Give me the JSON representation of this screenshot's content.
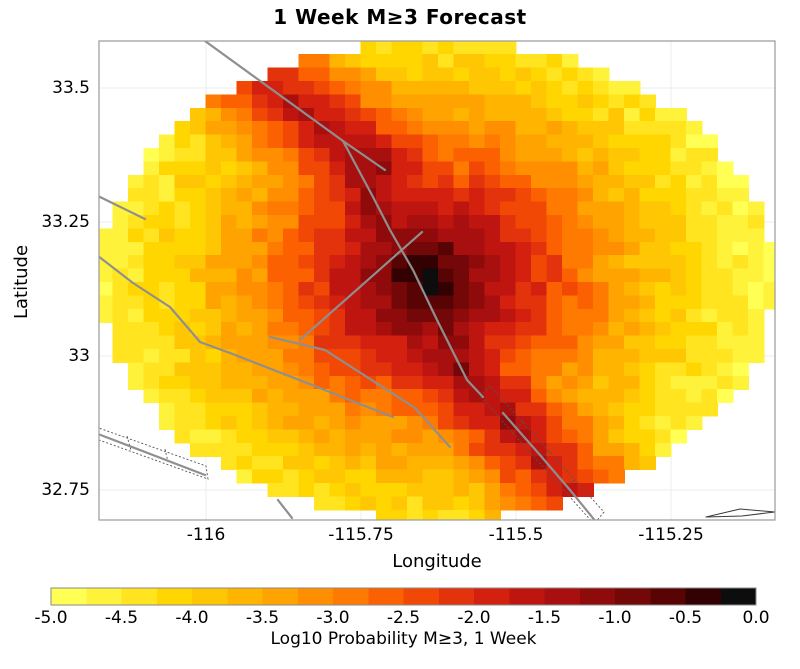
{
  "chart_data": {
    "type": "heatmap",
    "title": "1 Week M≥3 Forecast",
    "xlabel": "Longitude",
    "ylabel": "Latitude",
    "xlim": [
      -116.1726,
      -115.0823
    ],
    "ylim": [
      32.694,
      33.5877
    ],
    "x_ticks": [
      -116,
      -115.75,
      -115.5,
      -115.25
    ],
    "x_tick_labels": [
      "-116",
      "-115.75",
      "-115.5",
      "-115.25"
    ],
    "y_ticks": [
      33.5,
      33.25,
      33.0,
      32.75
    ],
    "y_tick_labels": [
      "33.5",
      "33.25",
      "33",
      "32.75"
    ],
    "grid": true,
    "legend_position": "bottom-colorbar",
    "cell_size_deg": 0.025,
    "grid_origin": {
      "lon": -116.175,
      "lat_top": 33.5875,
      "nx": 44,
      "ny": 36
    },
    "mask_ellipse": {
      "center_lon": -115.6275,
      "center_lat": 33.1408,
      "rx": 0.545,
      "ry": 0.447
    },
    "field_model": {
      "description": "log10 weekly M>=3 probability: radial peak at mainshock + ridge along main fault + noisy yellow background, quantized to 0.25 colour blocks",
      "peak": {
        "lon": -115.642,
        "lat": 33.142,
        "value": -0.05,
        "radial_poly": [
          -0.05,
          -13.5,
          9.0
        ]
      },
      "ridge": {
        "base": -0.8,
        "along_decay": 1.9,
        "cross_decay": 17.0,
        "polylines": [
          [
            [
              -116.0016,
              33.5877
            ],
            [
              -115.779,
              33.4011
            ],
            [
              -115.7306,
              33.2966
            ],
            [
              -115.7032,
              33.2351
            ],
            [
              -115.6661,
              33.1604
            ],
            [
              -115.6274,
              33.0672
            ],
            [
              -115.579,
              32.9552
            ],
            [
              -115.5532,
              32.9235
            ],
            [
              -115.521,
              32.8937
            ],
            [
              -115.4613,
              32.8153
            ],
            [
              -115.4129,
              32.75
            ],
            [
              -115.3694,
              32.6884
            ]
          ],
          [
            [
              -115.779,
              33.4011
            ],
            [
              -115.7113,
              33.347
            ]
          ]
        ]
      },
      "noise_amp": 0.24,
      "seed": 42,
      "value_range": [
        -5,
        0
      ]
    },
    "colorbar": {
      "label": "Log10 Probability M≥3, 1 Week",
      "ticks": [
        -5.0,
        -4.5,
        -4.0,
        -3.5,
        -3.0,
        -2.5,
        -2.0,
        -1.5,
        -1.0,
        -0.5,
        0.0
      ],
      "tick_labels": [
        "-5.0",
        "-4.5",
        "-4.0",
        "-3.5",
        "-3.0",
        "-2.5",
        "-2.0",
        "-1.5",
        "-1.0",
        "-0.5",
        "0.0"
      ],
      "block_step": 0.25,
      "colors": [
        "#FFFF54",
        "#FFF23B",
        "#FFE41F",
        "#FFD600",
        "#FFC603",
        "#FFB500",
        "#FFA300",
        "#FF8F00",
        "#FF7A00",
        "#FB6100",
        "#F14806",
        "#E3330C",
        "#D3200F",
        "#BF1511",
        "#A80F0F",
        "#8F0B0B",
        "#740707",
        "#580404",
        "#330101",
        "#0D0D0D"
      ]
    },
    "fault_lines": [
      {
        "name": "main-fault-upper",
        "style": "solid",
        "points": [
          [
            -116.0016,
            33.5877
          ],
          [
            -115.779,
            33.4011
          ],
          [
            -115.7306,
            33.2966
          ],
          [
            -115.7032,
            33.2351
          ],
          [
            -115.6661,
            33.1604
          ],
          [
            -115.6274,
            33.0672
          ],
          [
            -115.579,
            32.9552
          ],
          [
            -115.5532,
            32.9235
          ]
        ]
      },
      {
        "name": "main-fault-lower",
        "style": "solid",
        "points": [
          [
            -115.521,
            32.8937
          ],
          [
            -115.4613,
            32.8153
          ],
          [
            -115.4129,
            32.75
          ],
          [
            -115.3694,
            32.6884
          ]
        ]
      },
      {
        "name": "main-fault-spur",
        "style": "solid",
        "points": [
          [
            -115.779,
            33.4011
          ],
          [
            -115.7113,
            33.347
          ]
        ]
      },
      {
        "name": "cross-fault-ne",
        "style": "solid",
        "points": [
          [
            -115.6516,
            33.2313
          ],
          [
            -115.8484,
            33.0299
          ]
        ]
      },
      {
        "name": "cross-fault-sw",
        "style": "solid",
        "points": [
          [
            -115.8968,
            33.0355
          ],
          [
            -115.8081,
            33.0112
          ],
          [
            -115.6629,
            32.903
          ],
          [
            -115.6065,
            32.8302
          ]
        ]
      },
      {
        "name": "west-fault-long",
        "style": "solid",
        "points": [
          [
            -116.1742,
            33.1866
          ],
          [
            -116.1177,
            33.1362
          ],
          [
            -116.0581,
            33.0914
          ],
          [
            -116.0097,
            33.0261
          ],
          [
            -115.9613,
            33.0056
          ],
          [
            -115.8371,
            32.9496
          ],
          [
            -115.6984,
            32.8862
          ]
        ]
      },
      {
        "name": "west-fault-short",
        "style": "solid",
        "points": [
          [
            -116.1742,
            33.2985
          ],
          [
            -116.0984,
            33.2556
          ]
        ]
      },
      {
        "name": "south-fault-short",
        "style": "solid",
        "points": [
          [
            -115.8839,
            32.7313
          ],
          [
            -115.8613,
            32.6978
          ]
        ]
      },
      {
        "name": "southwest-fault",
        "style": "solid",
        "points": [
          [
            -116.1742,
            32.8545
          ],
          [
            -116.0016,
            32.778
          ]
        ]
      },
      {
        "name": "border-curve-a",
        "style": "thin-dark",
        "points": [
          [
            -115.1935,
            32.6996
          ],
          [
            -115.1387,
            32.7146
          ],
          [
            -115.0823,
            32.709
          ]
        ]
      },
      {
        "name": "border-curve-b",
        "style": "thin-dark",
        "points": [
          [
            -115.1935,
            32.6996
          ],
          [
            -115.1355,
            32.7015
          ],
          [
            -115.0823,
            32.709
          ]
        ]
      }
    ],
    "fault_zones": [
      {
        "name": "southwest-fault-zone-box",
        "polygon": [
          [
            -116.1774,
            32.8675
          ],
          [
            -116.0,
            32.7948
          ],
          [
            -115.9968,
            32.7705
          ],
          [
            -116.1726,
            32.8433
          ]
        ],
        "ticks": [
          [
            [
              -116.1274,
              32.8507
            ],
            [
              -116.121,
              32.8246
            ]
          ],
          [
            [
              -116.0661,
              32.8265
            ],
            [
              -116.0613,
              32.8022
            ]
          ]
        ]
      },
      {
        "name": "southeast-fault-zone-box",
        "polygon": [
          [
            -115.5581,
            32.9254
          ],
          [
            -115.5419,
            32.944
          ],
          [
            -115.3581,
            32.7089
          ],
          [
            -115.3742,
            32.6866
          ]
        ],
        "ticks": [
          [
            [
              -115.5,
              32.8657
            ],
            [
              -115.4871,
              32.8787
            ]
          ],
          [
            [
              -115.4581,
              32.8097
            ],
            [
              -115.4452,
              32.8228
            ]
          ],
          [
            [
              -115.4194,
              32.7556
            ],
            [
              -115.4065,
              32.7687
            ]
          ]
        ]
      }
    ],
    "style_colors": {
      "fault": "#8f8f8f",
      "fault_zone": "#555555",
      "thin_dark": "#3a3a3a",
      "grid": "#ececec",
      "frame": "#a0a0a0",
      "background": "#ffffff"
    }
  }
}
